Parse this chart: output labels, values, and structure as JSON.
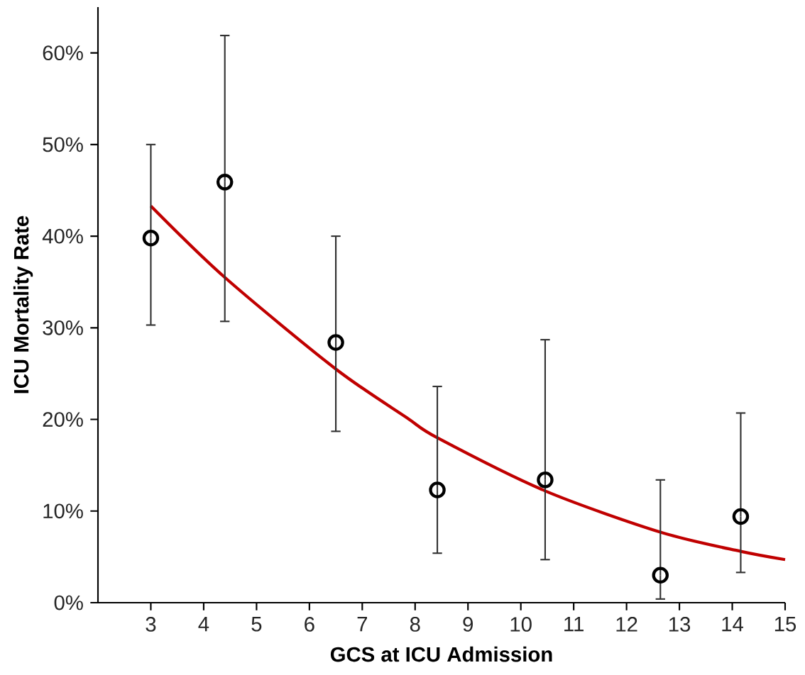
{
  "chart_data": {
    "type": "scatter",
    "xlabel": "GCS at ICU Admission",
    "ylabel": "ICU Mortality Rate",
    "xlim": [
      2,
      15
    ],
    "xticks": [
      3,
      4,
      5,
      6,
      7,
      8,
      9,
      10,
      11,
      12,
      13,
      14,
      15
    ],
    "ylim": [
      0,
      65
    ],
    "yticks": [
      {
        "value": 0,
        "label": "0%"
      },
      {
        "value": 10,
        "label": "10%"
      },
      {
        "value": 20,
        "label": "20%"
      },
      {
        "value": 30,
        "label": "30%"
      },
      {
        "value": 40,
        "label": "40%"
      },
      {
        "value": 50,
        "label": "50%"
      },
      {
        "value": 60,
        "label": "60%"
      }
    ],
    "series": [
      {
        "color": "#000000",
        "marker": "circle",
        "x": [
          3,
          4.4,
          6.5,
          8.42,
          10.46,
          12.64,
          14.16
        ],
        "values": [
          39.8,
          45.9,
          28.4,
          12.3,
          13.4,
          3.0,
          9.4
        ],
        "errors": [
          [
            30.3,
            50
          ],
          [
            30.7,
            61.9
          ],
          [
            18.7,
            40.0
          ],
          [
            5.4,
            23.6
          ],
          [
            4.7,
            28.7
          ],
          [
            0.4,
            13.4
          ],
          [
            3.3,
            20.7
          ]
        ]
      },
      {
        "type": "line",
        "color": "#c00000",
        "marker": "none",
        "line_style": "solid",
        "x": [
          3,
          4.4,
          6.5,
          7.84,
          8.42,
          10.46,
          12.64,
          14.16,
          15
        ],
        "values": [
          43.3,
          35.5,
          25.5,
          20.2,
          18.0,
          12.2,
          7.7,
          5.6,
          4.7
        ]
      }
    ]
  }
}
